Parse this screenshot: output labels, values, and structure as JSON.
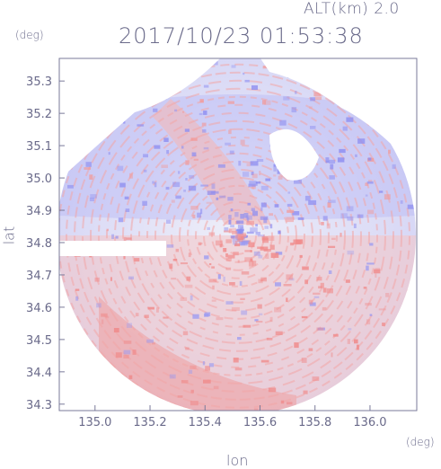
{
  "header": {
    "altitude_label": "ALT(km) 2.0",
    "timestamp": "2017/10/23 01:53:38"
  },
  "units": {
    "y": "(deg)",
    "x": "(deg)"
  },
  "chart_data": {
    "type": "heatmap",
    "title": "2017/10/23 01:53:38",
    "subtitle": "ALT(km) 2.0",
    "xlabel": "lon",
    "ylabel": "lat",
    "xlim": [
      134.87,
      136.17
    ],
    "ylim": [
      34.28,
      35.37
    ],
    "x_ticks": [
      "135.0",
      "135.2",
      "135.4",
      "135.6",
      "135.8",
      "136.0"
    ],
    "y_ticks": [
      "34.3",
      "34.4",
      "34.5",
      "34.6",
      "34.7",
      "34.8",
      "34.9",
      "35.0",
      "35.1",
      "35.2",
      "35.3"
    ],
    "grid": false,
    "colors": {
      "negative": "#7a7af0",
      "neutral": "#e8e8f8",
      "positive": "#f07a7a",
      "axis": "#6a6a8a"
    },
    "center": {
      "lon": 135.52,
      "lat": 34.82
    }
  }
}
